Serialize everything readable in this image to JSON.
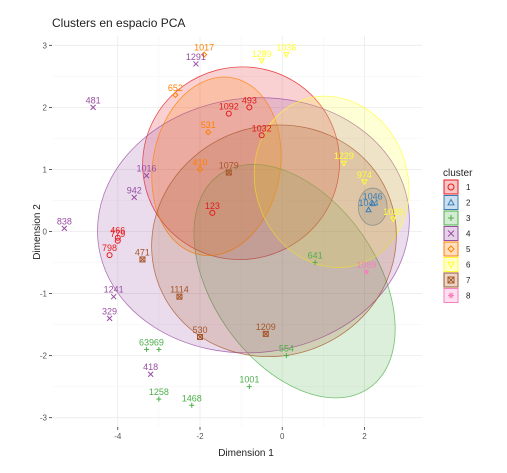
{
  "chart_data": {
    "type": "scatter",
    "title": "Clusters en espacio PCA",
    "xlabel": "Dimension 1",
    "ylabel": "Dimension 2",
    "xlim": [
      -5.6,
      3.4
    ],
    "ylim": [
      -3.15,
      3.15
    ],
    "xticks": [
      -4,
      -2,
      0,
      2
    ],
    "yticks": [
      -3,
      -2,
      -1,
      0,
      1,
      2,
      3
    ],
    "grid": true,
    "legend": {
      "title": "cluster",
      "position": "right"
    },
    "clusters": [
      {
        "name": "1",
        "color": "#E41A1C",
        "marker": "circle",
        "ellipse": {
          "cx": -1.0,
          "cy": 1.1,
          "rx": 2.4,
          "ry": 1.55,
          "angle": -15
        },
        "points": [
          {
            "x": -4.0,
            "y": -0.15,
            "label": "779"
          },
          {
            "x": -4.2,
            "y": -0.38,
            "label": "798"
          },
          {
            "x": -4.0,
            "y": -0.1,
            "label": "466"
          },
          {
            "x": -1.3,
            "y": 1.9,
            "label": "1092"
          },
          {
            "x": -0.8,
            "y": 2.0,
            "label": "493"
          },
          {
            "x": -0.5,
            "y": 1.55,
            "label": "1032"
          },
          {
            "x": -1.7,
            "y": 0.3,
            "label": "123"
          }
        ]
      },
      {
        "name": "2",
        "color": "#377EB8",
        "marker": "triangle",
        "ellipse": {
          "cx": 2.2,
          "cy": 0.4,
          "rx": 0.35,
          "ry": 0.3,
          "angle": 0
        },
        "points": [
          {
            "x": 2.2,
            "y": 0.45,
            "label": "1046"
          },
          {
            "x": 2.1,
            "y": 0.35,
            "label": "1044"
          }
        ]
      },
      {
        "name": "3",
        "color": "#4DAF4A",
        "marker": "plus",
        "ellipse": {
          "cx": 0.3,
          "cy": -0.8,
          "rx": 2.0,
          "ry": 2.1,
          "angle": -35
        },
        "points": [
          {
            "x": -3.3,
            "y": -1.9,
            "label": "639"
          },
          {
            "x": -3.0,
            "y": -1.9,
            "label": "69"
          },
          {
            "x": -3.0,
            "y": -2.7,
            "label": "1258"
          },
          {
            "x": -2.2,
            "y": -2.8,
            "label": "1468"
          },
          {
            "x": -0.8,
            "y": -2.5,
            "label": "1001"
          },
          {
            "x": 0.1,
            "y": -2.0,
            "label": "554"
          },
          {
            "x": 0.8,
            "y": -0.5,
            "label": "641"
          }
        ]
      },
      {
        "name": "4",
        "color": "#984EA3",
        "marker": "x",
        "ellipse": {
          "cx": -0.7,
          "cy": 0.1,
          "rx": 3.8,
          "ry": 2.05,
          "angle": -6
        },
        "points": [
          {
            "x": -5.3,
            "y": 0.05,
            "label": "838"
          },
          {
            "x": -4.6,
            "y": 2.0,
            "label": "481"
          },
          {
            "x": -4.2,
            "y": -1.4,
            "label": "329"
          },
          {
            "x": -2.1,
            "y": 2.7,
            "label": "1291"
          },
          {
            "x": -3.6,
            "y": 0.55,
            "label": "942"
          },
          {
            "x": -3.3,
            "y": 0.9,
            "label": "1016"
          },
          {
            "x": -4.1,
            "y": -1.05,
            "label": "1241"
          },
          {
            "x": -3.2,
            "y": -2.3,
            "label": "418"
          }
        ]
      },
      {
        "name": "5",
        "color": "#FF7F00",
        "marker": "diamond",
        "ellipse": {
          "cx": -1.6,
          "cy": 1.05,
          "rx": 1.55,
          "ry": 1.45,
          "angle": 10
        },
        "points": [
          {
            "x": -1.9,
            "y": 2.85,
            "label": "1017"
          },
          {
            "x": -2.6,
            "y": 2.2,
            "label": "652"
          },
          {
            "x": -1.8,
            "y": 1.6,
            "label": "531"
          },
          {
            "x": -2.0,
            "y": 1.0,
            "label": "410"
          }
        ]
      },
      {
        "name": "6",
        "color": "#FFFF33",
        "marker": "triangle-down",
        "ellipse": {
          "cx": 1.2,
          "cy": 0.8,
          "rx": 1.85,
          "ry": 1.4,
          "angle": -20
        },
        "points": [
          {
            "x": 0.1,
            "y": 2.85,
            "label": "1036"
          },
          {
            "x": -0.5,
            "y": 2.75,
            "label": "1289"
          },
          {
            "x": 1.5,
            "y": 1.1,
            "label": "1229"
          },
          {
            "x": 2.0,
            "y": 0.8,
            "label": "974"
          },
          {
            "x": 2.7,
            "y": 0.2,
            "label": "1039"
          }
        ]
      },
      {
        "name": "7",
        "color": "#A65628",
        "marker": "box",
        "ellipse": {
          "cx": -0.2,
          "cy": -0.15,
          "rx": 3.0,
          "ry": 1.85,
          "angle": -20
        },
        "points": [
          {
            "x": -1.3,
            "y": 0.95,
            "label": "1079"
          },
          {
            "x": -3.4,
            "y": -0.45,
            "label": "471"
          },
          {
            "x": -2.5,
            "y": -1.05,
            "label": "1114"
          },
          {
            "x": -2.0,
            "y": -1.7,
            "label": "530"
          },
          {
            "x": -0.4,
            "y": -1.65,
            "label": "1209"
          }
        ]
      },
      {
        "name": "8",
        "color": "#F781BF",
        "marker": "star",
        "ellipse": null,
        "points": [
          {
            "x": 2.05,
            "y": -0.65,
            "label": "1089"
          }
        ]
      }
    ]
  }
}
